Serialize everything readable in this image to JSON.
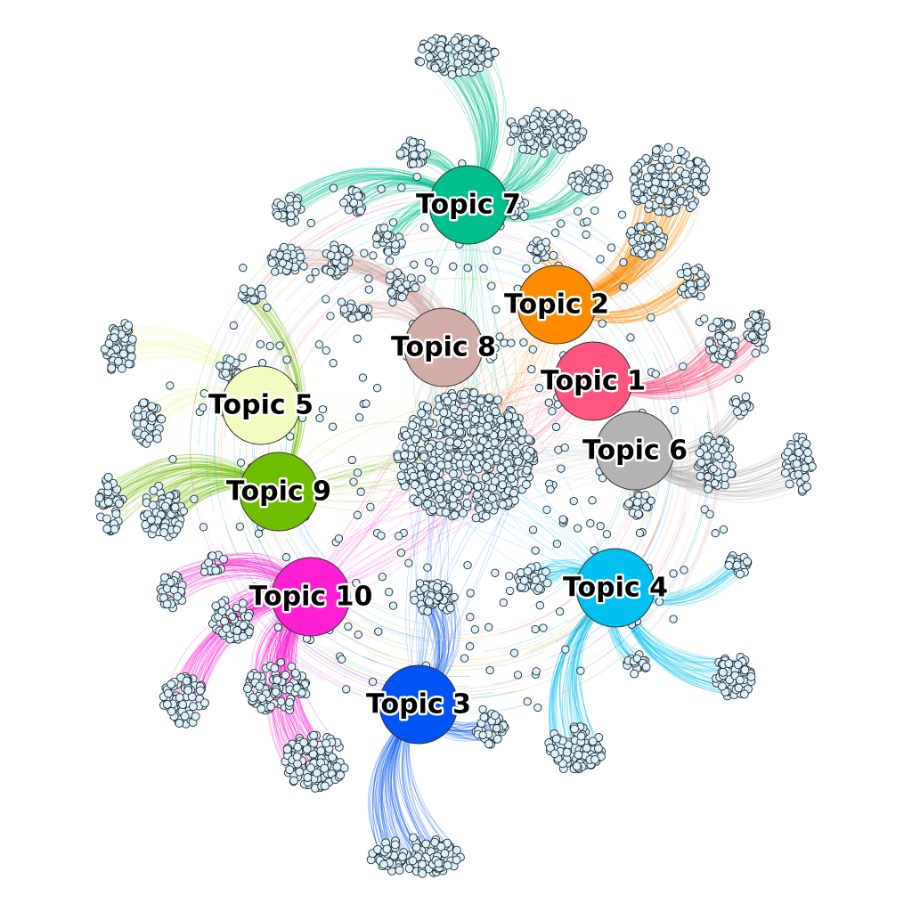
{
  "topics": [
    {
      "id": "topic-7",
      "label": "Topic 7",
      "color": "#00bf8f"
    },
    {
      "id": "topic-2",
      "label": "Topic 2",
      "color": "#ff8c00"
    },
    {
      "id": "topic-8",
      "label": "Topic 8",
      "color": "#d3ada8"
    },
    {
      "id": "topic-1",
      "label": "Topic 1",
      "color": "#ff5580"
    },
    {
      "id": "topic-5",
      "label": "Topic 5",
      "color": "#f0fcc0"
    },
    {
      "id": "topic-6",
      "label": "Topic 6",
      "color": "#b4b4b4"
    },
    {
      "id": "topic-9",
      "label": "Topic 9",
      "color": "#70bd00"
    },
    {
      "id": "topic-4",
      "label": "Topic 4",
      "color": "#00c0f0"
    },
    {
      "id": "topic-10",
      "label": "Topic 10",
      "color": "#ff1fd2"
    },
    {
      "id": "topic-3",
      "label": "Topic 3",
      "color": "#0053f5"
    }
  ],
  "document_node_color": "#dff2fb"
}
